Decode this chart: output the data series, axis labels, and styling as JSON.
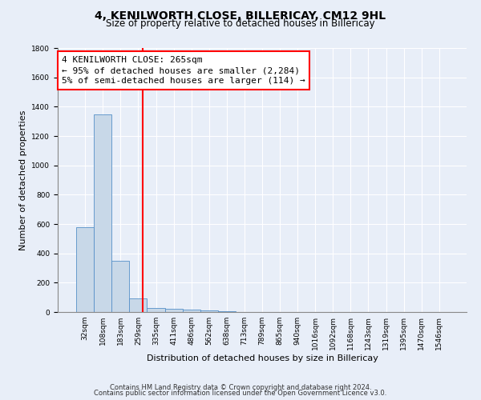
{
  "title": "4, KENILWORTH CLOSE, BILLERICAY, CM12 9HL",
  "subtitle": "Size of property relative to detached houses in Billericay",
  "xlabel": "Distribution of detached houses by size in Billericay",
  "ylabel": "Number of detached properties",
  "bar_color": "#c8d8e8",
  "bar_edge_color": "#5590c8",
  "background_color": "#e8eef8",
  "grid_color": "white",
  "bin_labels": [
    "32sqm",
    "108sqm",
    "183sqm",
    "259sqm",
    "335sqm",
    "411sqm",
    "486sqm",
    "562sqm",
    "638sqm",
    "713sqm",
    "789sqm",
    "865sqm",
    "940sqm",
    "1016sqm",
    "1092sqm",
    "1168sqm",
    "1243sqm",
    "1319sqm",
    "1395sqm",
    "1470sqm",
    "1546sqm"
  ],
  "bar_heights": [
    580,
    1350,
    350,
    95,
    30,
    20,
    15,
    10,
    5,
    0,
    0,
    0,
    0,
    0,
    0,
    0,
    0,
    0,
    0,
    0,
    0
  ],
  "red_line_x": 3.27,
  "annotation_line1": "4 KENILWORTH CLOSE: 265sqm",
  "annotation_line2": "← 95% of detached houses are smaller (2,284)",
  "annotation_line3": "5% of semi-detached houses are larger (114) →",
  "annotation_box_color": "white",
  "annotation_box_edge_color": "red",
  "red_line_color": "red",
  "ylim": [
    0,
    1800
  ],
  "yticks": [
    0,
    200,
    400,
    600,
    800,
    1000,
    1200,
    1400,
    1600,
    1800
  ],
  "footer_line1": "Contains HM Land Registry data © Crown copyright and database right 2024.",
  "footer_line2": "Contains public sector information licensed under the Open Government Licence v3.0.",
  "title_fontsize": 10,
  "subtitle_fontsize": 8.5,
  "xlabel_fontsize": 8,
  "ylabel_fontsize": 8,
  "tick_fontsize": 6.5,
  "annotation_fontsize": 8,
  "footer_fontsize": 6
}
